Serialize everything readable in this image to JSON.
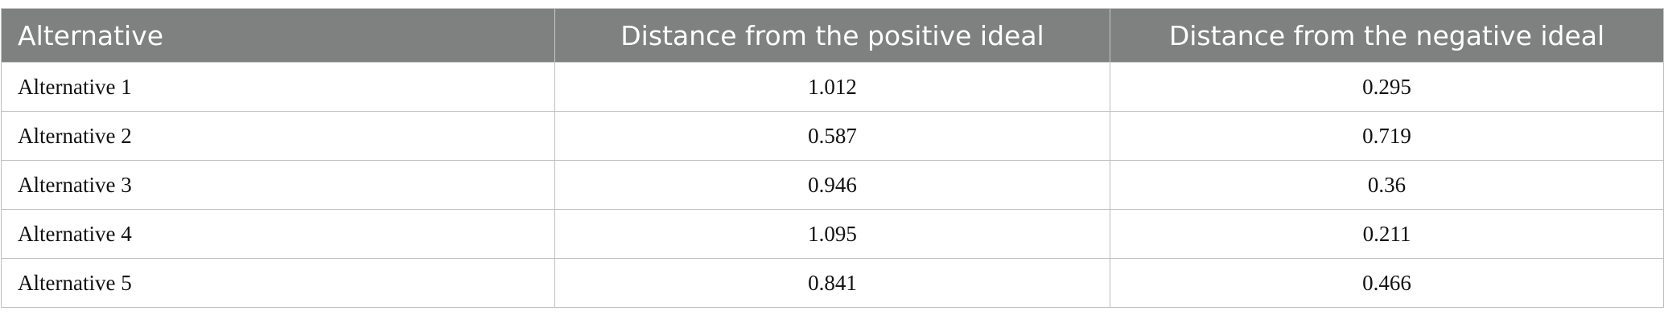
{
  "table": {
    "header": [
      "Alternative",
      "Distance from the positive ideal",
      "Distance from the negative ideal"
    ],
    "rows": [
      [
        "Alternative 1",
        "1.012",
        "0.295"
      ],
      [
        "Alternative 2",
        "0.587",
        "0.719"
      ],
      [
        "Alternative 3",
        "0.946",
        "0.36"
      ],
      [
        "Alternative 4",
        "1.095",
        "0.211"
      ],
      [
        "Alternative 5",
        "0.841",
        "0.466"
      ]
    ]
  }
}
